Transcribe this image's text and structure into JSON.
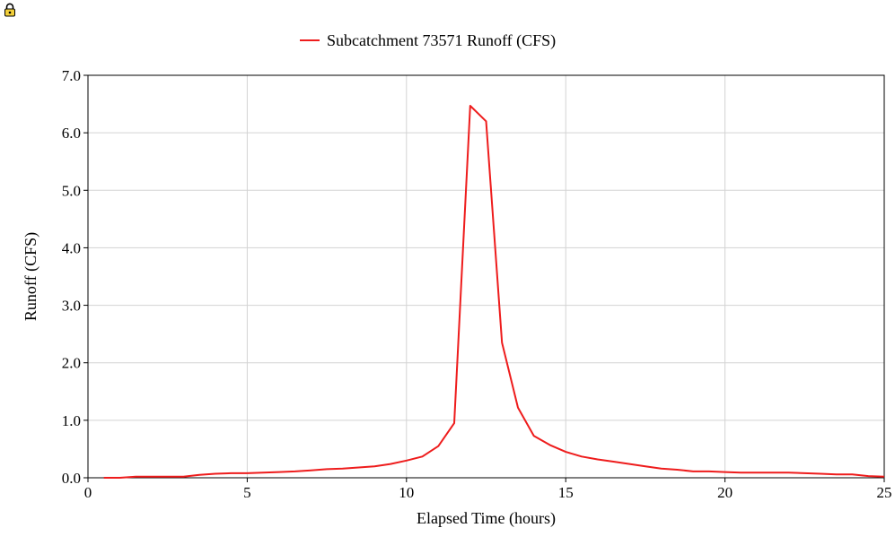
{
  "colors": {
    "series": "#ee1c1c",
    "grid": "#d3d3d3",
    "axis": "#000000",
    "background": "#ffffff"
  },
  "icons": {
    "lock": "lock-icon"
  },
  "chart_data": {
    "type": "line",
    "xlabel": "Elapsed Time (hours)",
    "ylabel": "Runoff (CFS)",
    "xlim": [
      0,
      25
    ],
    "ylim": [
      0,
      7
    ],
    "x_ticks": [
      0,
      5,
      10,
      15,
      20,
      25
    ],
    "x_tick_labels": [
      "0",
      "5",
      "10",
      "15",
      "20",
      "25"
    ],
    "y_ticks": [
      0,
      1,
      2,
      3,
      4,
      5,
      6,
      7
    ],
    "y_tick_labels": [
      "0.0",
      "1.0",
      "2.0",
      "3.0",
      "4.0",
      "5.0",
      "6.0",
      "7.0"
    ],
    "grid": true,
    "legend_position": "top-center",
    "series": [
      {
        "name": "Subcatchment 73571 Runoff (CFS)",
        "color": "#ee1c1c",
        "x": [
          0.5,
          1.0,
          1.5,
          2.0,
          2.5,
          3.0,
          3.5,
          4.0,
          4.5,
          5.0,
          5.5,
          6.0,
          6.5,
          7.0,
          7.5,
          8.0,
          8.5,
          9.0,
          9.5,
          10.0,
          10.5,
          11.0,
          11.5,
          12.0,
          12.5,
          13.0,
          13.5,
          14.0,
          14.5,
          15.0,
          15.5,
          16.0,
          16.5,
          17.0,
          17.5,
          18.0,
          18.5,
          19.0,
          19.5,
          20.0,
          20.5,
          21.0,
          21.5,
          22.0,
          22.5,
          23.0,
          23.5,
          24.0,
          24.5,
          25.0
        ],
        "y": [
          0.0,
          0.0,
          0.02,
          0.02,
          0.02,
          0.02,
          0.05,
          0.07,
          0.08,
          0.08,
          0.09,
          0.1,
          0.11,
          0.13,
          0.15,
          0.16,
          0.18,
          0.2,
          0.24,
          0.3,
          0.37,
          0.55,
          0.95,
          6.47,
          6.2,
          2.35,
          1.22,
          0.73,
          0.57,
          0.45,
          0.37,
          0.32,
          0.28,
          0.24,
          0.2,
          0.16,
          0.14,
          0.11,
          0.11,
          0.1,
          0.09,
          0.09,
          0.09,
          0.09,
          0.08,
          0.07,
          0.06,
          0.06,
          0.03,
          0.02
        ]
      }
    ]
  }
}
